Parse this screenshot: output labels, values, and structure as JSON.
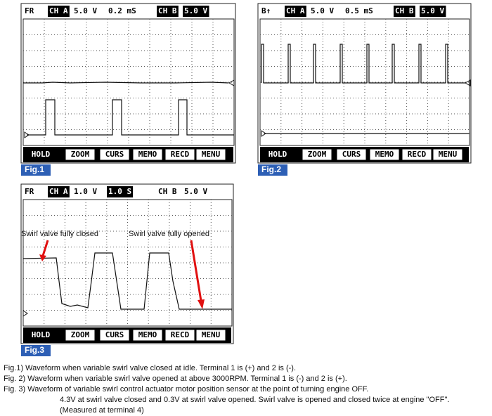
{
  "figures": [
    {
      "label": "Fig.1",
      "header": [
        {
          "text": "FR",
          "inverted": false
        },
        {
          "text": "CH A",
          "inverted": true
        },
        {
          "text": "5.0 V",
          "inverted": false
        },
        {
          "text": "0.2 mS",
          "inverted": false
        },
        {
          "text": "CH B",
          "inverted": true
        },
        {
          "text": "5.0 V",
          "inverted": true
        }
      ],
      "buttons": [
        "HOLD",
        "ZOOM",
        "CURS",
        "MEMO",
        "RECD",
        "MENU"
      ]
    },
    {
      "label": "Fig.2",
      "header": [
        {
          "text": "B↑",
          "inverted": false
        },
        {
          "text": "CH A",
          "inverted": true
        },
        {
          "text": "5.0 V",
          "inverted": false
        },
        {
          "text": "0.5 mS",
          "inverted": false
        },
        {
          "text": "CH B",
          "inverted": true
        },
        {
          "text": "5.0 V",
          "inverted": true
        }
      ],
      "buttons": [
        "HOLD",
        "ZOOM",
        "CURS",
        "MEMO",
        "RECD",
        "MENU"
      ]
    },
    {
      "label": "Fig.3",
      "header": [
        {
          "text": "FR",
          "inverted": false
        },
        {
          "text": "CH A",
          "inverted": true
        },
        {
          "text": "1.0 V",
          "inverted": false
        },
        {
          "text": "1.0 S",
          "inverted": true
        },
        {
          "text": "CH B",
          "inverted": false
        },
        {
          "text": "5.0 V",
          "inverted": false
        }
      ],
      "buttons": [
        "HOLD",
        "ZOOM",
        "CURS",
        "MEMO",
        "RECD",
        "MENU"
      ]
    }
  ],
  "annotations": [
    "Swirl valve fully closed",
    "Swirl valve fully opened"
  ],
  "captions": [
    "Fig.1) Waveform when variable swirl valve closed at idle. Terminal 1 is (+) and 2 is (-).",
    "Fig. 2)  Waveform when variable swirl valve opened at above 3000RPM. Terminal 1 is (-) and 2 is (+).",
    "Fig. 3) Waveform of variable swirl control actuator motor position sensor at the point of turning engine OFF.",
    "4.3V at swirl valve closed and 0.3V at swirl valve opened. Swirl valve is opened and closed twice at engine \"OFF\".",
    "(Measured at terminal 4)"
  ]
}
